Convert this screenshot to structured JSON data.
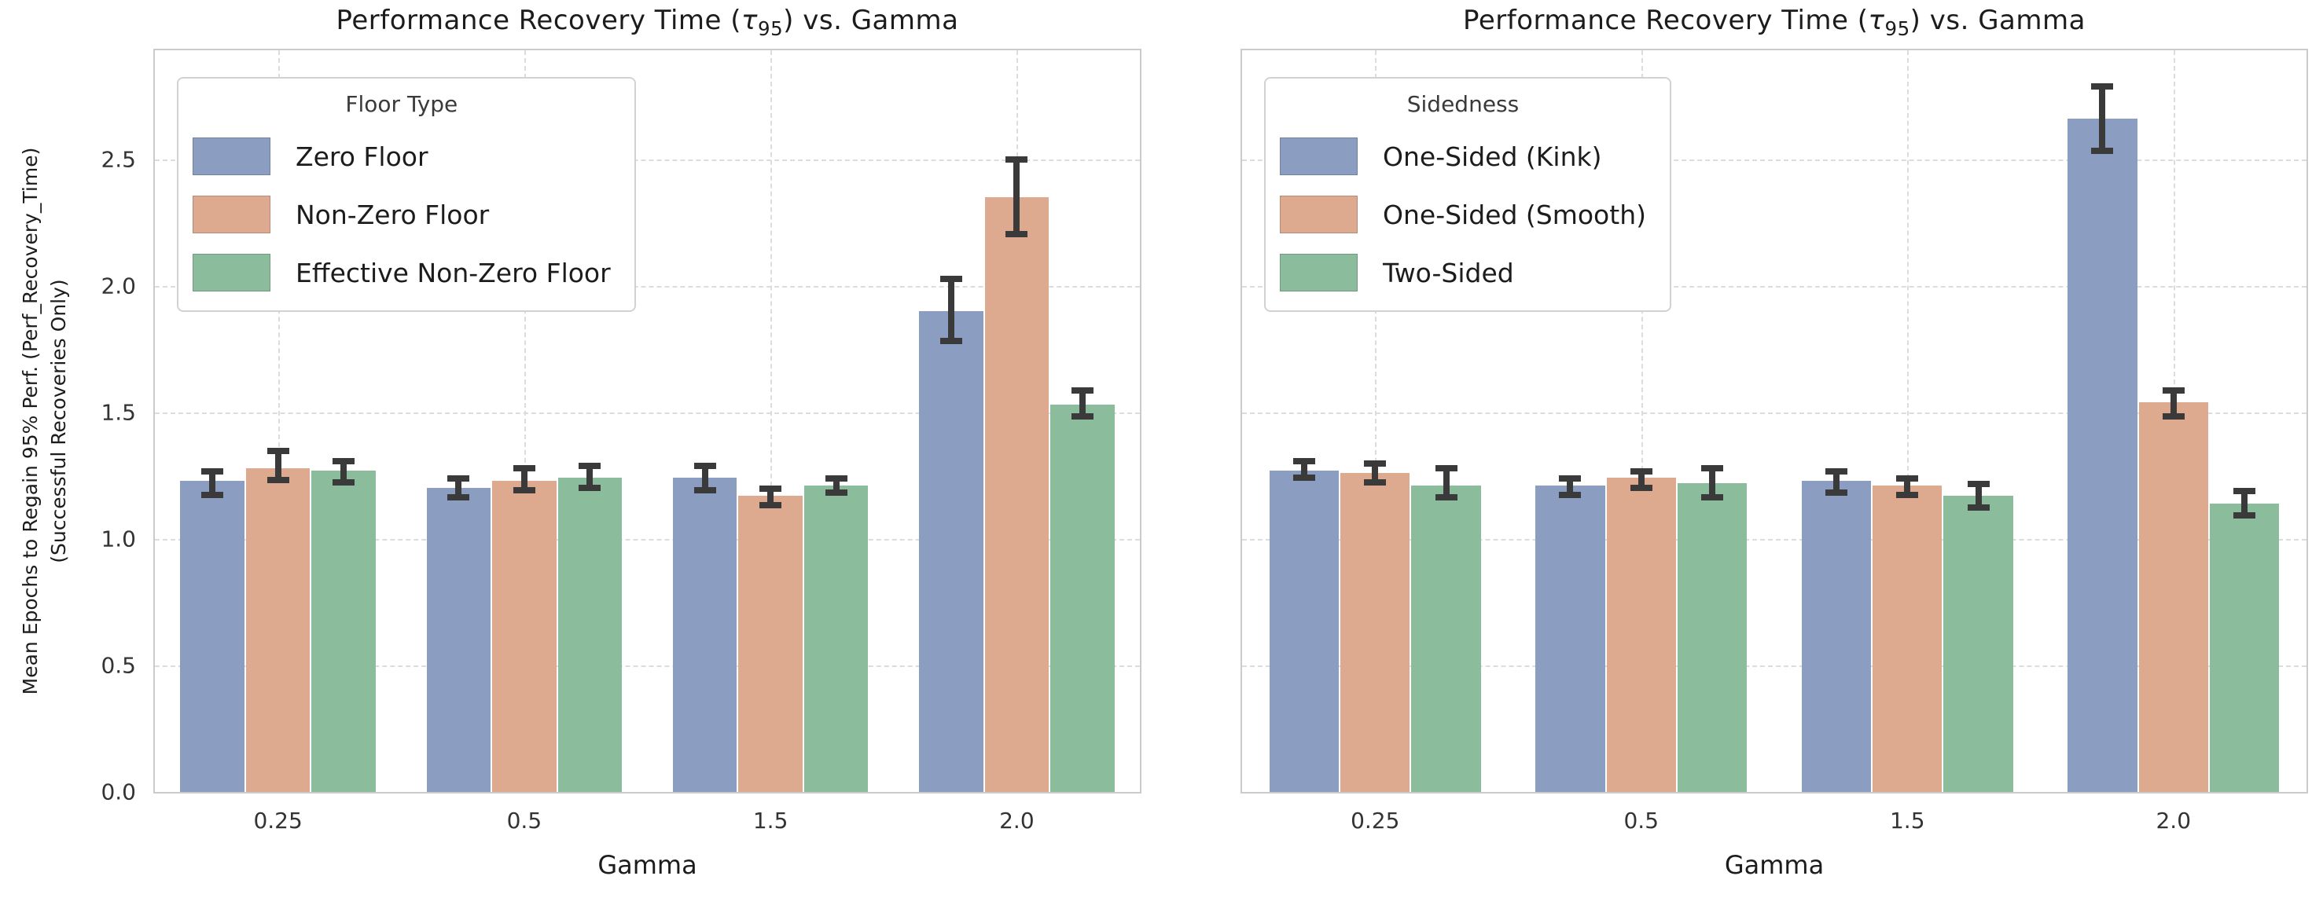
{
  "colors": {
    "blue": "#8b9ec1",
    "orange": "#ddaa90",
    "green": "#8bbc9b",
    "errorbar": "#3a3a3a",
    "grid": "#dcdcdc",
    "spine": "#cbcbcb",
    "text": "#1c1c1c"
  },
  "ylabel_lines": [
    "Mean Epochs to Regain 95% Perf. (Perf_Recovery_Time)",
    "(Successful Recoveries Only)"
  ],
  "chart_data": [
    {
      "type": "bar",
      "title": "Performance Recovery Time (τ₉₅) vs. Gamma",
      "title_parts": {
        "pre": "Performance Recovery Time (",
        "tau": "τ",
        "sub": "95",
        "post": ") vs. Gamma"
      },
      "xlabel": "Gamma",
      "ylabel": "Mean Epochs to Regain 95% Perf. (Perf_Recovery_Time)\n(Successful Recoveries Only)",
      "categories": [
        "0.25",
        "0.5",
        "1.5",
        "2.0"
      ],
      "yticks": [
        "0.0",
        "0.5",
        "1.0",
        "1.5",
        "2.0",
        "2.5"
      ],
      "ylim": [
        0,
        2.93
      ],
      "grid": "dashed",
      "show_ytick_labels": true,
      "legend": {
        "title": "Floor Type",
        "position": "upper left",
        "items": [
          "Zero Floor",
          "Non-Zero Floor",
          "Effective Non-Zero Floor"
        ]
      },
      "series": [
        {
          "name": "Zero Floor",
          "color": "blue",
          "values": [
            1.23,
            1.2,
            1.24,
            1.9
          ],
          "ci_low": [
            1.16,
            1.15,
            1.18,
            1.77
          ],
          "ci_high": [
            1.28,
            1.25,
            1.3,
            2.04
          ]
        },
        {
          "name": "Non-Zero Floor",
          "color": "orange",
          "values": [
            1.28,
            1.23,
            1.17,
            2.35
          ],
          "ci_low": [
            1.22,
            1.18,
            1.12,
            2.19
          ],
          "ci_high": [
            1.36,
            1.29,
            1.21,
            2.51
          ]
        },
        {
          "name": "Effective Non-Zero Floor",
          "color": "green",
          "values": [
            1.27,
            1.24,
            1.21,
            1.53
          ],
          "ci_low": [
            1.21,
            1.19,
            1.17,
            1.47
          ],
          "ci_high": [
            1.32,
            1.3,
            1.25,
            1.6
          ]
        }
      ]
    },
    {
      "type": "bar",
      "title": "Performance Recovery Time (τ₉₅) vs. Gamma",
      "title_parts": {
        "pre": "Performance Recovery Time (",
        "tau": "τ",
        "sub": "95",
        "post": ") vs. Gamma"
      },
      "xlabel": "Gamma",
      "categories": [
        "0.25",
        "0.5",
        "1.5",
        "2.0"
      ],
      "yticks": [
        "0.0",
        "0.5",
        "1.0",
        "1.5",
        "2.0",
        "2.5"
      ],
      "ylim": [
        0,
        2.93
      ],
      "grid": "dashed",
      "show_ytick_labels": false,
      "legend": {
        "title": "Sidedness",
        "position": "upper left",
        "items": [
          "One-Sided (Kink)",
          "One-Sided (Smooth)",
          "Two-Sided"
        ]
      },
      "series": [
        {
          "name": "One-Sided (Kink)",
          "color": "blue",
          "values": [
            1.27,
            1.21,
            1.23,
            2.66
          ],
          "ci_low": [
            1.23,
            1.16,
            1.17,
            2.52
          ],
          "ci_high": [
            1.32,
            1.25,
            1.28,
            2.8
          ]
        },
        {
          "name": "One-Sided (Smooth)",
          "color": "orange",
          "values": [
            1.26,
            1.24,
            1.21,
            1.54
          ],
          "ci_low": [
            1.21,
            1.19,
            1.16,
            1.47
          ],
          "ci_high": [
            1.31,
            1.28,
            1.25,
            1.6
          ]
        },
        {
          "name": "Two-Sided",
          "color": "green",
          "values": [
            1.21,
            1.22,
            1.17,
            1.14
          ],
          "ci_low": [
            1.15,
            1.15,
            1.11,
            1.08
          ],
          "ci_high": [
            1.29,
            1.29,
            1.23,
            1.2
          ]
        }
      ]
    }
  ]
}
